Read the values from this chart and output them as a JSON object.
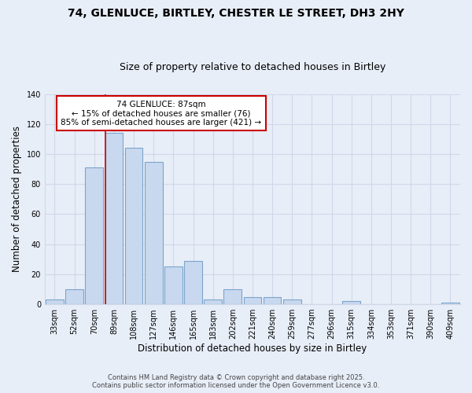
{
  "title": "74, GLENLUCE, BIRTLEY, CHESTER LE STREET, DH3 2HY",
  "subtitle": "Size of property relative to detached houses in Birtley",
  "xlabel": "Distribution of detached houses by size in Birtley",
  "ylabel": "Number of detached properties",
  "bin_labels": [
    "33sqm",
    "52sqm",
    "70sqm",
    "89sqm",
    "108sqm",
    "127sqm",
    "146sqm",
    "165sqm",
    "183sqm",
    "202sqm",
    "221sqm",
    "240sqm",
    "259sqm",
    "277sqm",
    "296sqm",
    "315sqm",
    "334sqm",
    "353sqm",
    "371sqm",
    "390sqm",
    "409sqm"
  ],
  "bar_values": [
    3,
    10,
    91,
    114,
    104,
    95,
    25,
    29,
    3,
    10,
    5,
    5,
    3,
    0,
    0,
    2,
    0,
    0,
    0,
    0,
    1
  ],
  "bar_color": "#c8d8ee",
  "bar_edge_color": "#7ba4cc",
  "ylim": [
    0,
    140
  ],
  "yticks": [
    0,
    20,
    40,
    60,
    80,
    100,
    120,
    140
  ],
  "redline_bin_index": 3,
  "annotation_title": "74 GLENLUCE: 87sqm",
  "annotation_line1": "← 15% of detached houses are smaller (76)",
  "annotation_line2": "85% of semi-detached houses are larger (421) →",
  "annotation_box_color": "#ffffff",
  "annotation_box_edge": "#cc0000",
  "footnote1": "Contains HM Land Registry data © Crown copyright and database right 2025.",
  "footnote2": "Contains public sector information licensed under the Open Government Licence v3.0.",
  "background_color": "#e8eef8",
  "grid_color": "#d0d8e8",
  "title_fontsize": 10,
  "subtitle_fontsize": 9,
  "axis_label_fontsize": 8.5,
  "tick_fontsize": 7,
  "annotation_fontsize": 7.5
}
